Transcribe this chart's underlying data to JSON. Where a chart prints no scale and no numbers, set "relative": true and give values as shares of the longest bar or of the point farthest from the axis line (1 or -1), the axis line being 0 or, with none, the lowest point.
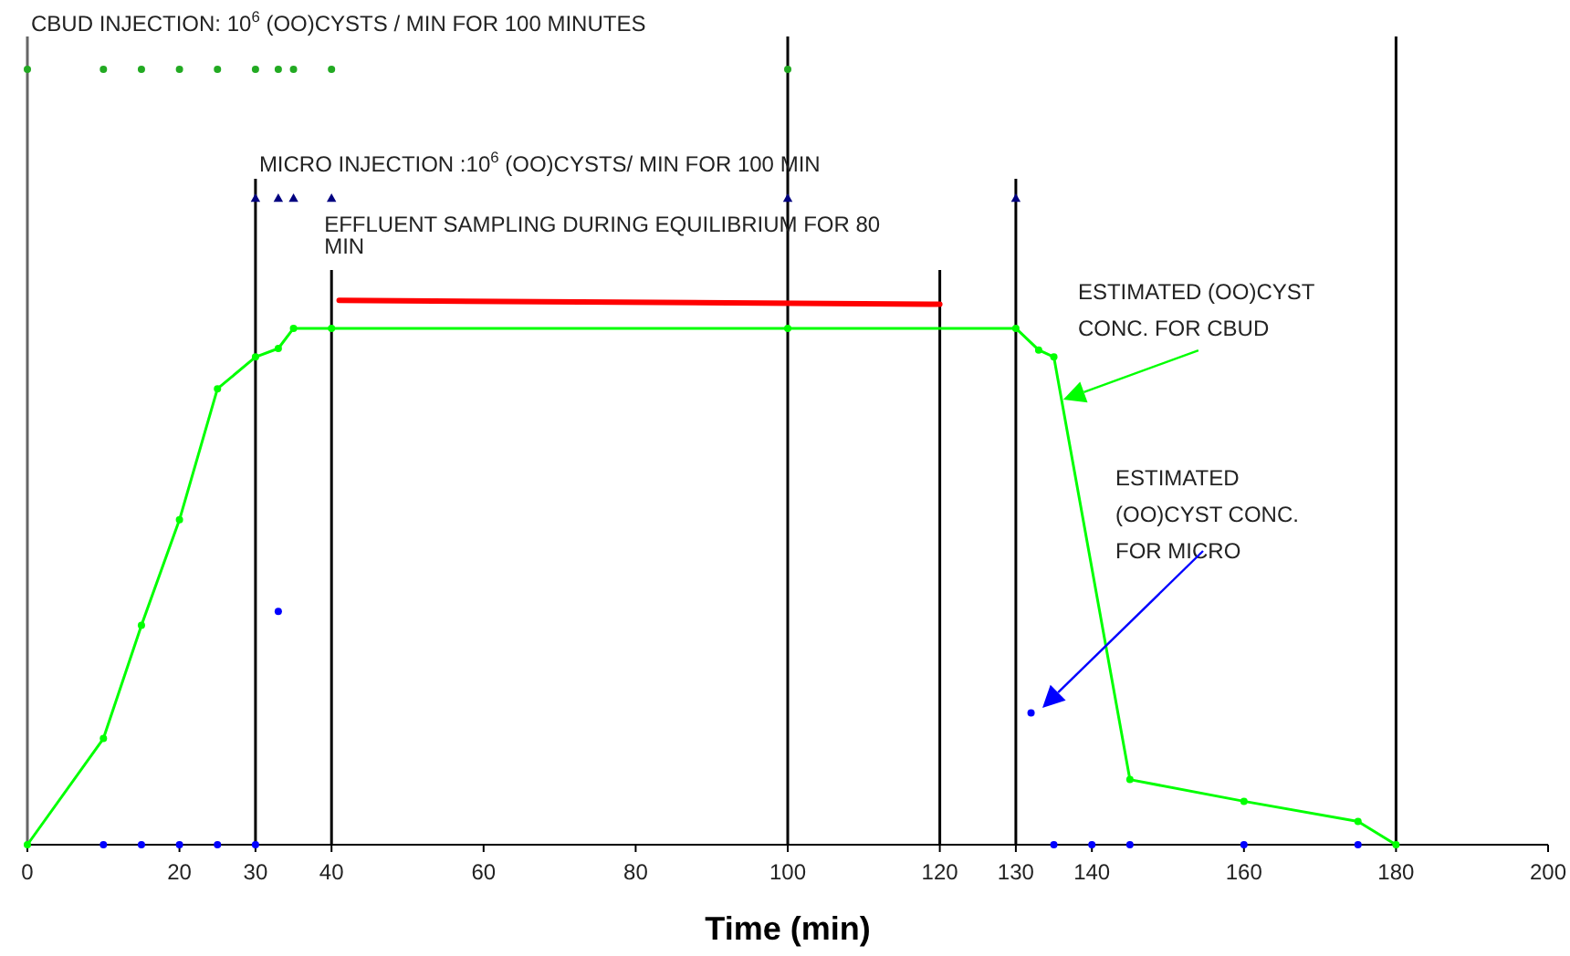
{
  "chart_data": {
    "type": "line",
    "relative": true,
    "xlabel": "Time (min)",
    "xlim": [
      0,
      200
    ],
    "xticks": [
      0,
      20,
      30,
      40,
      60,
      80,
      100,
      120,
      130,
      140,
      160,
      180,
      200
    ],
    "series": [
      {
        "color": "#00ff00",
        "marker": "circle",
        "x": [
          0,
          10,
          15,
          20,
          25,
          30,
          33,
          35,
          40,
          100,
          130,
          133,
          135,
          145,
          160,
          175,
          180
        ],
        "values": [
          0,
          0.137,
          0.283,
          0.419,
          0.588,
          0.629,
          0.64,
          0.666,
          0.666,
          0.666,
          0.666,
          0.638,
          0.629,
          0.084,
          0.056,
          0.03,
          0
        ]
      },
      {
        "type": "scatter",
        "color": "#0000ff",
        "marker": "circle",
        "x": [
          10,
          15,
          20,
          25,
          30,
          33,
          132,
          135,
          140,
          145,
          160,
          175
        ],
        "values": [
          0,
          0,
          0,
          0,
          0,
          0.301,
          0.17,
          0,
          0,
          0,
          0,
          0
        ]
      },
      {
        "type": "scatter",
        "color": "#22aa22",
        "marker": "circle",
        "x": [
          0,
          10,
          15,
          20,
          25,
          30,
          33,
          35,
          40,
          100
        ],
        "values": [
          1,
          1,
          1,
          1,
          1,
          1,
          1,
          1,
          1,
          1
        ]
      },
      {
        "type": "scatter",
        "color": "#000080",
        "marker": "triangle",
        "x": [
          30,
          33,
          35,
          40,
          100,
          130
        ],
        "values": [
          0.833,
          0.833,
          0.833,
          0.833,
          0.833,
          0.833
        ]
      },
      {
        "color": "#ff0000",
        "marker": "none",
        "x": [
          41,
          120
        ],
        "values": [
          0.702,
          0.697
        ]
      }
    ],
    "ref_lines": [
      {
        "axis": "x",
        "value": 30,
        "color": "#000000"
      },
      {
        "axis": "x",
        "value": 40,
        "color": "#000000"
      },
      {
        "axis": "x",
        "value": 100,
        "color": "#000000"
      },
      {
        "axis": "x",
        "value": 120,
        "color": "#000000"
      },
      {
        "axis": "x",
        "value": 130,
        "color": "#000000"
      },
      {
        "axis": "x",
        "value": 180,
        "color": "#000000"
      }
    ],
    "annotations": [
      "CBUD INJECTION: 10$^{6}$ (OO)CYSTS / MIN FOR 100 MINUTES",
      "MICRO INJECTION :10$^{6}$ (OO)CYSTS/ MIN FOR 100 MIN",
      "EFFLUENT SAMPLING DURING EQUILIBRIUM FOR 80 MIN",
      {
        "text": "ESTIMATED (OO)CYST CONC. FOR  CBUD",
        "x": 136,
        "y": 0.574
      },
      "ESTIMATED (OO)CYST CONC. FOR  MICRO"
    ]
  }
}
